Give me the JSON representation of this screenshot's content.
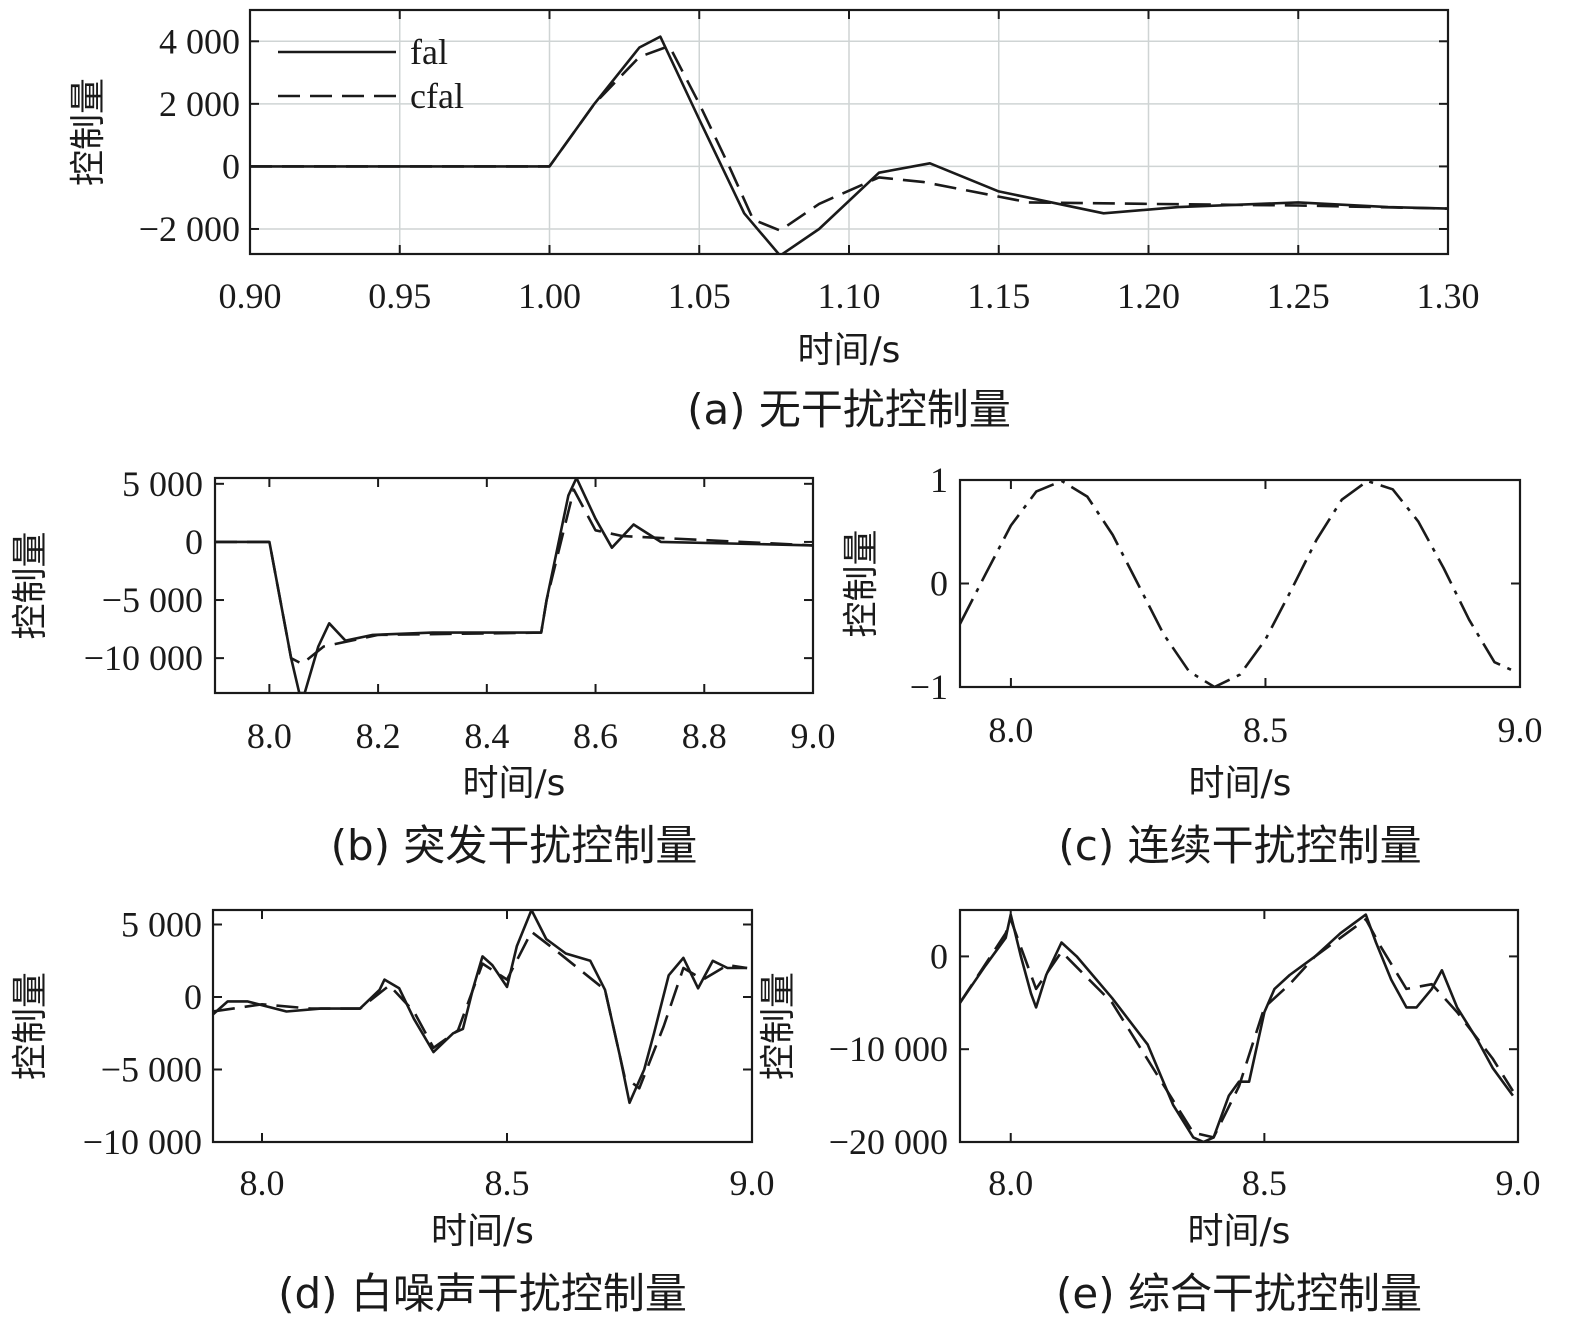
{
  "chart_data": [
    {
      "id": "a",
      "type": "line",
      "caption": "(a) 无干扰控制量",
      "xlabel": "时间/s",
      "ylabel": "控制量",
      "xlim": [
        0.9,
        1.3
      ],
      "ylim": [
        -2800,
        5000
      ],
      "xticks": [
        0.9,
        0.95,
        1.0,
        1.05,
        1.1,
        1.15,
        1.2,
        1.25,
        1.3
      ],
      "xtick_labels": [
        "0.90",
        "0.95",
        "1.00",
        "1.05",
        "1.10",
        "1.15",
        "1.20",
        "1.25",
        "1.30"
      ],
      "yticks": [
        4000,
        2000,
        0,
        -2000
      ],
      "ytick_labels": [
        "4 000",
        "2 000",
        "0",
        "−2 000"
      ],
      "grid": true,
      "legend": "top-left",
      "series": [
        {
          "name": "fal",
          "style": "solid",
          "x": [
            0.9,
            1.0,
            1.015,
            1.03,
            1.037,
            1.05,
            1.065,
            1.077,
            1.09,
            1.11,
            1.127,
            1.15,
            1.185,
            1.21,
            1.25,
            1.28,
            1.3
          ],
          "y": [
            0,
            0,
            2000,
            3800,
            4150,
            1500,
            -1500,
            -2850,
            -2000,
            -200,
            100,
            -800,
            -1500,
            -1300,
            -1150,
            -1300,
            -1350
          ]
        },
        {
          "name": "cfal",
          "style": "dashed",
          "x": [
            0.9,
            1.0,
            1.015,
            1.03,
            1.04,
            1.05,
            1.06,
            1.068,
            1.077,
            1.09,
            1.11,
            1.125,
            1.16,
            1.2,
            1.25,
            1.3
          ],
          "y": [
            0,
            0,
            2000,
            3500,
            3850,
            2000,
            0,
            -1700,
            -2050,
            -1200,
            -350,
            -500,
            -1150,
            -1200,
            -1250,
            -1350
          ]
        }
      ]
    },
    {
      "id": "b",
      "type": "line",
      "caption": "(b) 突发干扰控制量",
      "xlabel": "时间/s",
      "ylabel": "控制量",
      "xlim": [
        7.9,
        9.0
      ],
      "ylim": [
        -13000,
        5500
      ],
      "xticks": [
        8.0,
        8.2,
        8.4,
        8.6,
        8.8,
        9.0
      ],
      "xtick_labels": [
        "8.0",
        "8.2",
        "8.4",
        "8.6",
        "8.8",
        "9.0"
      ],
      "yticks": [
        5000,
        0,
        -5000,
        -10000
      ],
      "ytick_labels": [
        "5 000",
        "0",
        "−5 000",
        "−10 000"
      ],
      "grid": false,
      "series": [
        {
          "style": "solid",
          "x": [
            7.9,
            8.0,
            8.04,
            8.055,
            8.065,
            8.09,
            8.11,
            8.14,
            8.19,
            8.3,
            8.5,
            8.51,
            8.55,
            8.565,
            8.6,
            8.63,
            8.67,
            8.72,
            9.0
          ],
          "y": [
            0,
            0,
            -10000,
            -13000,
            -13000,
            -9000,
            -7000,
            -8500,
            -8000,
            -7800,
            -7800,
            -5000,
            4000,
            5500,
            2000,
            -500,
            1500,
            0,
            -300
          ]
        },
        {
          "style": "dashed",
          "x": [
            7.9,
            8.0,
            8.04,
            8.06,
            8.1,
            8.2,
            8.5,
            8.51,
            8.56,
            8.6,
            8.65,
            9.0
          ],
          "y": [
            0,
            0,
            -10000,
            -10500,
            -9000,
            -8000,
            -7800,
            -5000,
            4500,
            1000,
            500,
            -300
          ]
        }
      ]
    },
    {
      "id": "c",
      "type": "line",
      "caption": "(c) 连续干扰控制量",
      "xlabel": "时间/s",
      "ylabel": "控制量",
      "xlim": [
        7.9,
        9.0
      ],
      "ylim": [
        -1,
        1
      ],
      "xticks": [
        8.0,
        8.5,
        9.0
      ],
      "xtick_labels": [
        "8.0",
        "8.5",
        "9.0"
      ],
      "yticks": [
        1,
        0,
        -1
      ],
      "ytick_labels": [
        "1",
        "0",
        "−1"
      ],
      "grid": false,
      "series": [
        {
          "style": "dashdot",
          "x": [
            7.9,
            7.95,
            8.0,
            8.05,
            8.1,
            8.15,
            8.2,
            8.25,
            8.3,
            8.35,
            8.4,
            8.45,
            8.5,
            8.55,
            8.6,
            8.65,
            8.7,
            8.75,
            8.8,
            8.85,
            8.9,
            8.95,
            8.99
          ],
          "y": [
            -0.39,
            0.09,
            0.56,
            0.89,
            0.99,
            0.84,
            0.47,
            -0.01,
            -0.49,
            -0.85,
            -1.0,
            -0.88,
            -0.54,
            -0.07,
            0.42,
            0.81,
            0.99,
            0.91,
            0.6,
            0.15,
            -0.35,
            -0.76,
            -0.85
          ]
        }
      ]
    },
    {
      "id": "d",
      "type": "line",
      "caption": "(d) 白噪声干扰控制量",
      "xlabel": "时间/s",
      "ylabel": "控制量",
      "xlim": [
        7.9,
        9.0
      ],
      "ylim": [
        -10000,
        6000
      ],
      "xticks": [
        8.0,
        8.5,
        9.0
      ],
      "xtick_labels": [
        "8.0",
        "8.5",
        "9.0"
      ],
      "yticks": [
        5000,
        0,
        -5000,
        -10000
      ],
      "ytick_labels": [
        "5 000",
        "0",
        "−5 000",
        "−10 000"
      ],
      "grid": false,
      "series": [
        {
          "style": "solid",
          "x": [
            7.9,
            7.93,
            7.97,
            8.05,
            8.12,
            8.2,
            8.24,
            8.25,
            8.28,
            8.31,
            8.35,
            8.39,
            8.41,
            8.43,
            8.45,
            8.47,
            8.5,
            8.52,
            8.55,
            8.58,
            8.62,
            8.67,
            8.7,
            8.73,
            8.75,
            8.78,
            8.8,
            8.83,
            8.86,
            8.89,
            8.92,
            8.95,
            8.99
          ],
          "y": [
            -1200,
            -300,
            -300,
            -1000,
            -800,
            -800,
            500,
            1200,
            600,
            -1500,
            -3800,
            -2500,
            -2200,
            500,
            2800,
            2200,
            700,
            3500,
            6000,
            4000,
            3000,
            2500,
            500,
            -4000,
            -7300,
            -5000,
            -2500,
            1500,
            2700,
            600,
            2500,
            2000,
            2000
          ]
        },
        {
          "style": "dashed",
          "x": [
            7.9,
            8.0,
            8.1,
            8.2,
            8.26,
            8.31,
            8.35,
            8.4,
            8.45,
            8.5,
            8.55,
            8.6,
            8.7,
            8.74,
            8.77,
            8.82,
            8.86,
            8.9,
            8.95,
            8.99
          ],
          "y": [
            -1000,
            -500,
            -800,
            -800,
            800,
            -1000,
            -3500,
            -2300,
            2300,
            1200,
            4500,
            3200,
            500,
            -5500,
            -6300,
            -2000,
            2000,
            1200,
            2200,
            2000
          ]
        }
      ]
    },
    {
      "id": "e",
      "type": "line",
      "caption": "(e) 综合干扰控制量",
      "xlabel": "时间/s",
      "ylabel": "控制量",
      "xlim": [
        7.9,
        9.0
      ],
      "ylim": [
        -20000,
        5000
      ],
      "xticks": [
        8.0,
        8.5,
        9.0
      ],
      "xtick_labels": [
        "8.0",
        "8.5",
        "9.0"
      ],
      "yticks": [
        0,
        -10000,
        -20000
      ],
      "ytick_labels": [
        "0",
        "−10 000",
        "−20 000"
      ],
      "grid": false,
      "series": [
        {
          "style": "solid",
          "x": [
            7.9,
            7.95,
            7.99,
            8.0,
            8.02,
            8.04,
            8.05,
            8.07,
            8.1,
            8.13,
            8.2,
            8.27,
            8.32,
            8.36,
            8.38,
            8.4,
            8.43,
            8.45,
            8.47,
            8.5,
            8.52,
            8.55,
            8.6,
            8.65,
            8.7,
            8.72,
            8.75,
            8.78,
            8.8,
            8.83,
            8.85,
            8.88,
            8.92,
            8.95,
            8.99
          ],
          "y": [
            -5000,
            -1000,
            2000,
            4500,
            0,
            -4000,
            -5500,
            -2000,
            1500,
            0,
            -4500,
            -9500,
            -16000,
            -19500,
            -20000,
            -19500,
            -15000,
            -13500,
            -13500,
            -6000,
            -3500,
            -2000,
            0,
            2500,
            4500,
            1500,
            -2500,
            -5500,
            -5500,
            -3500,
            -1500,
            -5500,
            -9000,
            -12000,
            -15000
          ]
        },
        {
          "style": "dashed",
          "x": [
            7.9,
            7.99,
            8.0,
            8.03,
            8.05,
            8.1,
            8.2,
            8.36,
            8.4,
            8.45,
            8.5,
            8.55,
            8.6,
            8.7,
            8.73,
            8.78,
            8.83,
            8.88,
            8.95,
            8.99
          ],
          "y": [
            -5000,
            2500,
            4000,
            -500,
            -3500,
            500,
            -5000,
            -19000,
            -19500,
            -14000,
            -5500,
            -3000,
            0,
            4000,
            1000,
            -3500,
            -3000,
            -6000,
            -11000,
            -14500
          ]
        }
      ]
    }
  ]
}
